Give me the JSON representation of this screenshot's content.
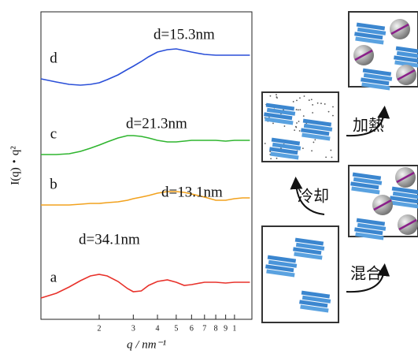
{
  "chart_data": {
    "type": "line",
    "xlabel": "q / nm⁻¹",
    "ylabel": "I(q)・q²",
    "xscale": "log",
    "x": [
      0.1,
      0.12,
      0.14,
      0.16,
      0.18,
      0.2,
      0.22,
      0.25,
      0.28,
      0.3,
      0.33,
      0.36,
      0.4,
      0.45,
      0.5,
      0.55,
      0.6,
      0.7,
      0.8,
      0.9,
      1.0,
      1.1,
      1.2
    ],
    "xlim": [
      0.1,
      1.23
    ],
    "xticks": [
      {
        "value": 0.2,
        "label": "2"
      },
      {
        "value": 0.3,
        "label": "3"
      },
      {
        "value": 0.4,
        "label": "4"
      },
      {
        "value": 0.5,
        "label": "5"
      },
      {
        "value": 0.6,
        "label": "6"
      },
      {
        "value": 0.7,
        "label": "7"
      },
      {
        "value": 0.8,
        "label": "8"
      },
      {
        "value": 0.9,
        "label": "9"
      },
      {
        "value": 1,
        "label": "1"
      }
    ],
    "ylim": [
      0,
      390
    ],
    "series": [
      {
        "name": "a",
        "color": "#e8322b",
        "values": [
          27,
          33,
          41,
          49,
          55,
          57,
          55,
          48,
          39,
          35,
          36,
          43,
          48,
          50,
          47,
          43,
          44,
          47,
          47,
          46,
          47,
          47,
          47
        ]
      },
      {
        "name": "b",
        "color": "#f2a21e",
        "values": [
          145,
          145,
          145,
          146,
          147,
          147,
          148,
          149,
          151,
          153,
          155,
          157,
          160,
          162,
          162,
          161,
          159,
          155,
          151,
          151,
          153,
          154,
          154
        ]
      },
      {
        "name": "c",
        "color": "#2fb52f",
        "values": [
          209,
          209,
          210,
          213,
          217,
          221,
          225,
          230,
          233,
          233,
          232,
          230,
          227,
          225,
          225,
          226,
          227,
          227,
          227,
          226,
          227,
          227,
          227
        ]
      },
      {
        "name": "d",
        "color": "#2a4fd8",
        "values": [
          305,
          301,
          298,
          297,
          298,
          300,
          304,
          310,
          317,
          321,
          327,
          333,
          339,
          342,
          343,
          341,
          339,
          336,
          335,
          335,
          335,
          335,
          335
        ]
      }
    ],
    "annotations": [
      "d=34.1nm",
      "d=13.1nm",
      "d=21.3nm",
      "d=15.3nm"
    ]
  },
  "diagram": {
    "steps": [
      "混合",
      "冷却",
      "加熱"
    ]
  }
}
